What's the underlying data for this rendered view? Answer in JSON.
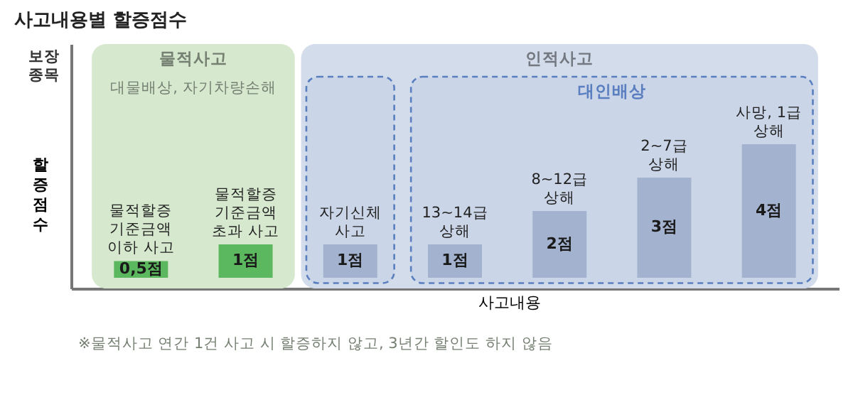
{
  "chart_data": {
    "type": "bar",
    "title": "사고내용별 할증점수",
    "xlabel": "사고내용",
    "ylabel": "할증점수",
    "categories": [
      "물적할증 기준금액 이하 사고",
      "물적할증 기준금액 초과 사고",
      "자기신체 사고",
      "13~14급 상해",
      "8~12급 상해",
      "2~7급 상해",
      "사망, 1급 상해"
    ],
    "values": [
      0.5,
      1,
      1,
      1,
      2,
      3,
      4
    ],
    "value_labels": [
      "0,5점",
      "1점",
      "1점",
      "1점",
      "2점",
      "3점",
      "4점"
    ],
    "colors": [
      "#5cb85f",
      "#5cb85f",
      "#a3b2cf",
      "#a3b2cf",
      "#a3b2cf",
      "#a3b2cf",
      "#a3b2cf"
    ],
    "tick_labels": false,
    "bands": [
      {
        "axis": "x",
        "from": "물적할증 기준금액 이하 사고",
        "to": "물적할증 기준금액 초과 사고",
        "label": "물적사고",
        "color": "#d6e9cf"
      },
      {
        "axis": "x",
        "from": "자기신체 사고",
        "to": "사망, 1급 상해",
        "label": "인적사고",
        "color": "#d3dcea"
      },
      {
        "axis": "x",
        "from": "자기신체 사고",
        "to": "자기신체 사고",
        "color": "#5a7fc0"
      },
      {
        "axis": "x",
        "from": "13~14급 상해",
        "to": "사망, 1급 상해",
        "label": "대인배상",
        "color": "#5a7fc0"
      }
    ],
    "annotations": [
      "보장종목",
      "대물배상, 자기차량손해",
      "※물적사고 연간 1건 사고 시 할증하지 않고, 3년간 할인도 하지 않음"
    ]
  }
}
